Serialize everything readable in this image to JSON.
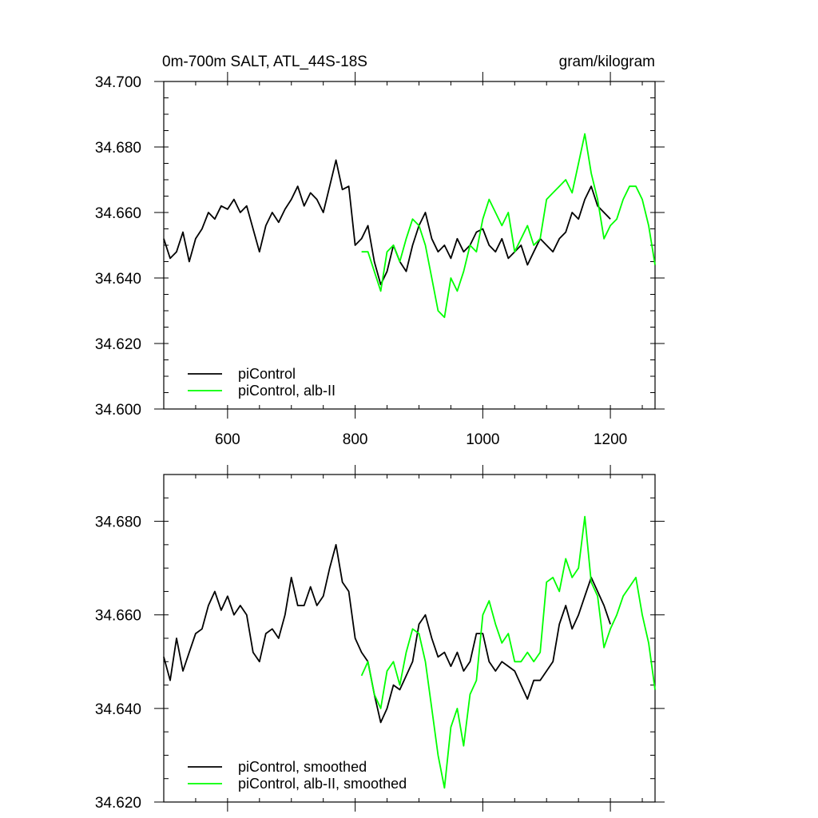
{
  "chart_data": [
    {
      "type": "line",
      "title": "0m-700m SALT, ATL_44S-18S",
      "units": "gram/kilogram",
      "xlim": [
        500,
        1270
      ],
      "ylim": [
        34.6,
        34.7
      ],
      "xticks": [
        600,
        800,
        1000,
        1200
      ],
      "yticks": [
        34.6,
        34.62,
        34.64,
        34.66,
        34.68,
        34.7
      ],
      "ytick_labels": [
        "34.600",
        "34.620",
        "34.640",
        "34.660",
        "34.680",
        "34.700"
      ],
      "xtick_labels": [
        "600",
        "800",
        "1000",
        "1200"
      ],
      "legend_position": "bottom-left",
      "series": [
        {
          "name": "piControl",
          "color": "#000000",
          "x": [
            500,
            510,
            520,
            530,
            540,
            550,
            560,
            570,
            580,
            590,
            600,
            610,
            620,
            630,
            640,
            650,
            660,
            670,
            680,
            690,
            700,
            710,
            720,
            730,
            740,
            750,
            760,
            770,
            780,
            790,
            800,
            810,
            820,
            830,
            840,
            850,
            860,
            870,
            880,
            890,
            900,
            910,
            920,
            930,
            940,
            950,
            960,
            970,
            980,
            990,
            1000,
            1010,
            1020,
            1030,
            1040,
            1050,
            1060,
            1070,
            1080,
            1090,
            1100,
            1110,
            1120,
            1130,
            1140,
            1150,
            1160,
            1170,
            1180,
            1190,
            1200
          ],
          "y": [
            34.652,
            34.646,
            34.648,
            34.654,
            34.645,
            34.652,
            34.655,
            34.66,
            34.658,
            34.662,
            34.661,
            34.664,
            34.66,
            34.662,
            34.655,
            34.648,
            34.656,
            34.66,
            34.657,
            34.661,
            34.664,
            34.668,
            34.662,
            34.666,
            34.664,
            34.66,
            34.668,
            34.676,
            34.667,
            34.668,
            34.65,
            34.652,
            34.656,
            34.645,
            34.638,
            34.642,
            34.65,
            34.645,
            34.642,
            34.65,
            34.656,
            34.66,
            34.652,
            34.648,
            34.65,
            34.646,
            34.652,
            34.648,
            34.65,
            34.654,
            34.655,
            34.65,
            34.648,
            34.652,
            34.646,
            34.648,
            34.65,
            34.644,
            34.648,
            34.652,
            34.65,
            34.648,
            34.652,
            34.654,
            34.66,
            34.658,
            34.664,
            34.668,
            34.662,
            34.66,
            34.658
          ]
        },
        {
          "name": "piControl, alb-II",
          "color": "#00ff00",
          "x": [
            810,
            820,
            830,
            840,
            850,
            860,
            870,
            880,
            890,
            900,
            910,
            920,
            930,
            940,
            950,
            960,
            970,
            980,
            990,
            1000,
            1010,
            1020,
            1030,
            1040,
            1050,
            1060,
            1070,
            1080,
            1090,
            1100,
            1110,
            1120,
            1130,
            1140,
            1150,
            1160,
            1170,
            1180,
            1190,
            1200,
            1210,
            1220,
            1230,
            1240,
            1250,
            1260,
            1270
          ],
          "y": [
            34.648,
            34.648,
            34.642,
            34.636,
            34.648,
            34.65,
            34.645,
            34.652,
            34.658,
            34.656,
            34.65,
            34.64,
            34.63,
            34.628,
            34.64,
            34.636,
            34.642,
            34.65,
            34.648,
            34.658,
            34.664,
            34.66,
            34.656,
            34.66,
            34.648,
            34.652,
            34.656,
            34.65,
            34.652,
            34.664,
            34.666,
            34.668,
            34.67,
            34.666,
            34.675,
            34.684,
            34.672,
            34.664,
            34.652,
            34.656,
            34.658,
            34.664,
            34.668,
            34.668,
            34.664,
            34.656,
            34.644
          ]
        }
      ]
    },
    {
      "type": "line",
      "xlim": [
        500,
        1270
      ],
      "ylim": [
        34.62,
        34.69
      ],
      "xticks": [
        600,
        800,
        1000,
        1200
      ],
      "yticks": [
        34.62,
        34.64,
        34.66,
        34.68
      ],
      "ytick_labels": [
        "34.620",
        "34.640",
        "34.660",
        "34.680"
      ],
      "legend_position": "bottom-left",
      "series": [
        {
          "name": "piControl, smoothed",
          "color": "#000000",
          "x": [
            500,
            510,
            520,
            530,
            540,
            550,
            560,
            570,
            580,
            590,
            600,
            610,
            620,
            630,
            640,
            650,
            660,
            670,
            680,
            690,
            700,
            710,
            720,
            730,
            740,
            750,
            760,
            770,
            780,
            790,
            800,
            810,
            820,
            830,
            840,
            850,
            860,
            870,
            880,
            890,
            900,
            910,
            920,
            930,
            940,
            950,
            960,
            970,
            980,
            990,
            1000,
            1010,
            1020,
            1030,
            1040,
            1050,
            1060,
            1070,
            1080,
            1090,
            1100,
            1110,
            1120,
            1130,
            1140,
            1150,
            1160,
            1170,
            1180,
            1190,
            1200
          ],
          "y": [
            34.651,
            34.646,
            34.655,
            34.648,
            34.652,
            34.656,
            34.657,
            34.662,
            34.665,
            34.661,
            34.664,
            34.66,
            34.662,
            34.66,
            34.652,
            34.65,
            34.656,
            34.657,
            34.655,
            34.66,
            34.668,
            34.662,
            34.662,
            34.666,
            34.662,
            34.664,
            34.67,
            34.675,
            34.667,
            34.665,
            34.655,
            34.652,
            34.65,
            34.643,
            34.637,
            34.64,
            34.645,
            34.644,
            34.647,
            34.65,
            34.658,
            34.66,
            34.655,
            34.651,
            34.652,
            34.649,
            34.652,
            34.648,
            34.65,
            34.656,
            34.656,
            34.65,
            34.648,
            34.65,
            34.649,
            34.648,
            34.645,
            34.642,
            34.646,
            34.646,
            34.648,
            34.65,
            34.658,
            34.662,
            34.657,
            34.66,
            34.664,
            34.668,
            34.665,
            34.662,
            34.658
          ]
        },
        {
          "name": "piControl, alb-II, smoothed",
          "color": "#00ff00",
          "x": [
            810,
            820,
            830,
            840,
            850,
            860,
            870,
            880,
            890,
            900,
            910,
            920,
            930,
            940,
            950,
            960,
            970,
            980,
            990,
            1000,
            1010,
            1020,
            1030,
            1040,
            1050,
            1060,
            1070,
            1080,
            1090,
            1100,
            1110,
            1120,
            1130,
            1140,
            1150,
            1160,
            1170,
            1180,
            1190,
            1200,
            1210,
            1220,
            1230,
            1240,
            1250,
            1260,
            1270
          ],
          "y": [
            34.647,
            34.65,
            34.643,
            34.64,
            34.648,
            34.65,
            34.645,
            34.652,
            34.657,
            34.656,
            34.65,
            34.64,
            34.63,
            34.623,
            34.636,
            34.64,
            34.632,
            34.643,
            34.646,
            34.66,
            34.663,
            34.658,
            34.654,
            34.656,
            34.65,
            34.65,
            34.652,
            34.65,
            34.652,
            34.667,
            34.668,
            34.665,
            34.672,
            34.668,
            34.67,
            34.681,
            34.667,
            34.664,
            34.653,
            34.657,
            34.66,
            34.664,
            34.666,
            34.668,
            34.66,
            34.654,
            34.644
          ]
        }
      ]
    }
  ]
}
